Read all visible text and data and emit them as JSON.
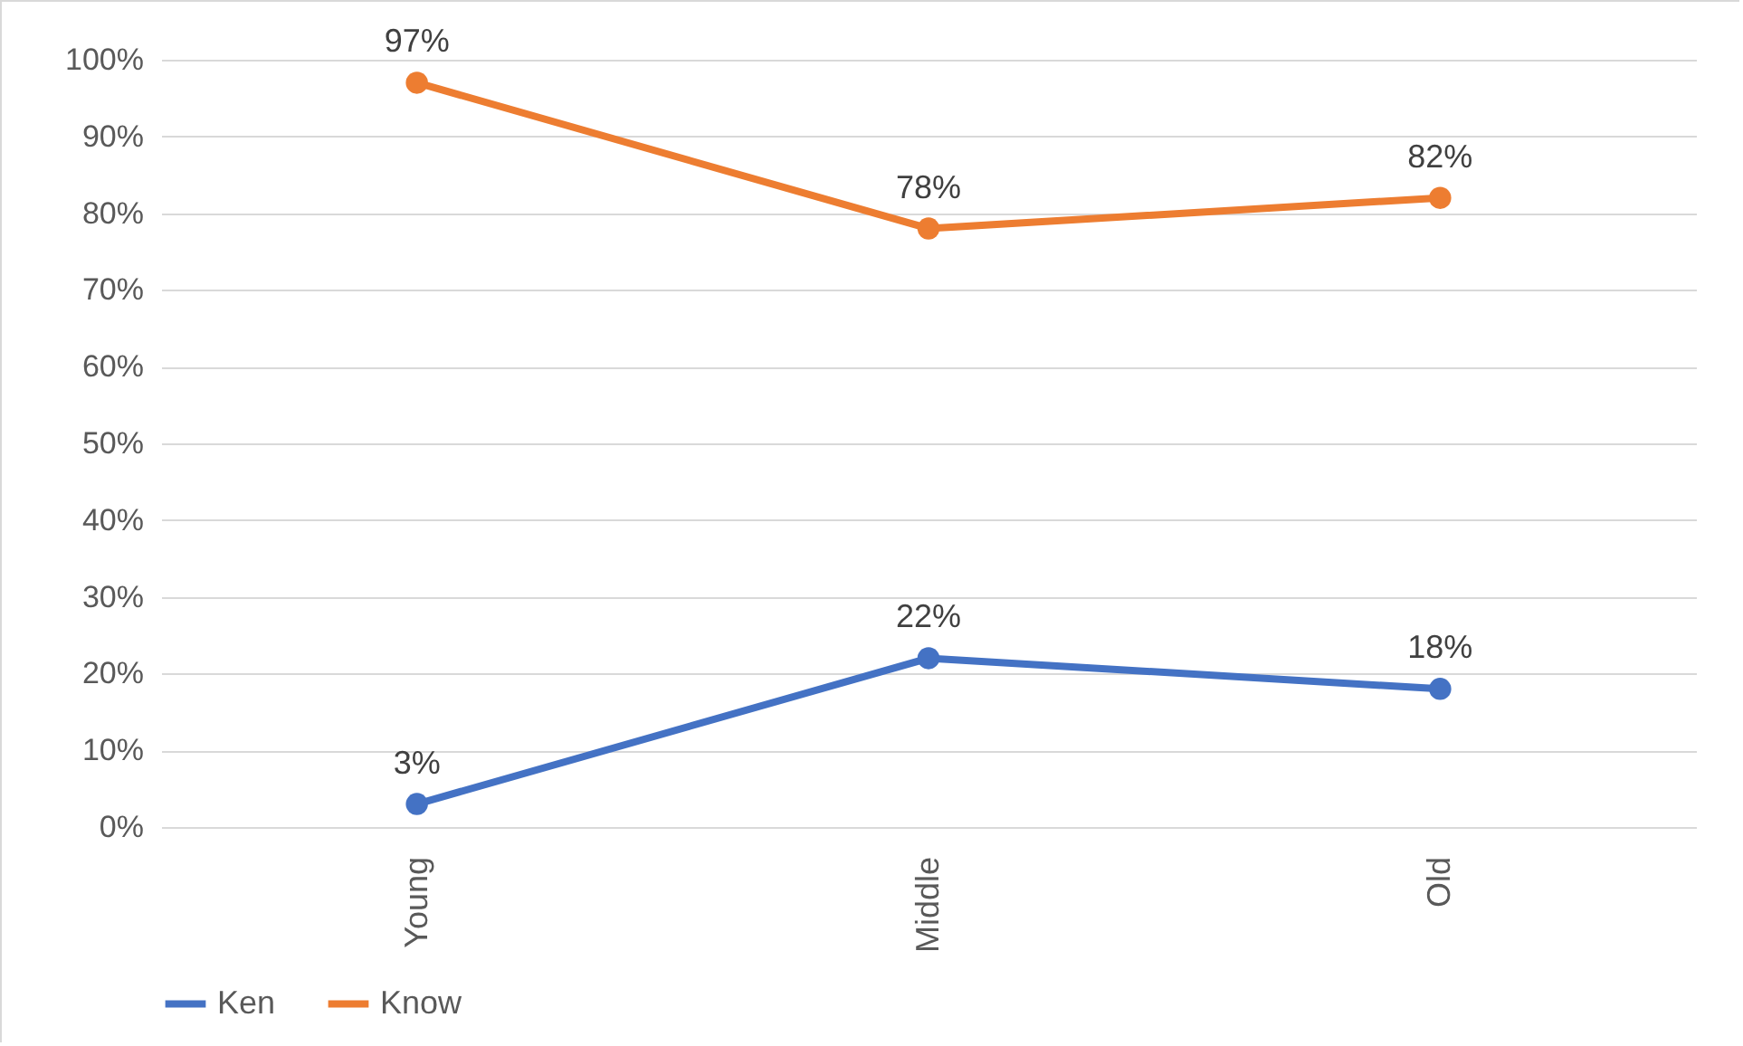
{
  "chart_data": {
    "type": "line",
    "categories": [
      "Young",
      "Middle",
      "Old"
    ],
    "series": [
      {
        "name": "Ken",
        "color": "#4472c4",
        "values": [
          3,
          22,
          18
        ],
        "value_labels": [
          "3%",
          "22%",
          "18%"
        ]
      },
      {
        "name": "Know",
        "color": "#ed7d31",
        "values": [
          97,
          78,
          82
        ],
        "value_labels": [
          "97%",
          "78%",
          "82%"
        ]
      }
    ],
    "ylim": [
      0,
      100
    ],
    "yticks": [
      {
        "value": 0,
        "label": "0%"
      },
      {
        "value": 10,
        "label": "10%"
      },
      {
        "value": 20,
        "label": "20%"
      },
      {
        "value": 30,
        "label": "30%"
      },
      {
        "value": 40,
        "label": "40%"
      },
      {
        "value": 50,
        "label": "50%"
      },
      {
        "value": 60,
        "label": "60%"
      },
      {
        "value": 70,
        "label": "70%"
      },
      {
        "value": 80,
        "label": "80%"
      },
      {
        "value": 90,
        "label": "90%"
      },
      {
        "value": 100,
        "label": "100%"
      }
    ],
    "grid": "y",
    "legend": "bottom",
    "marker": "circle",
    "line_style": "solid"
  }
}
